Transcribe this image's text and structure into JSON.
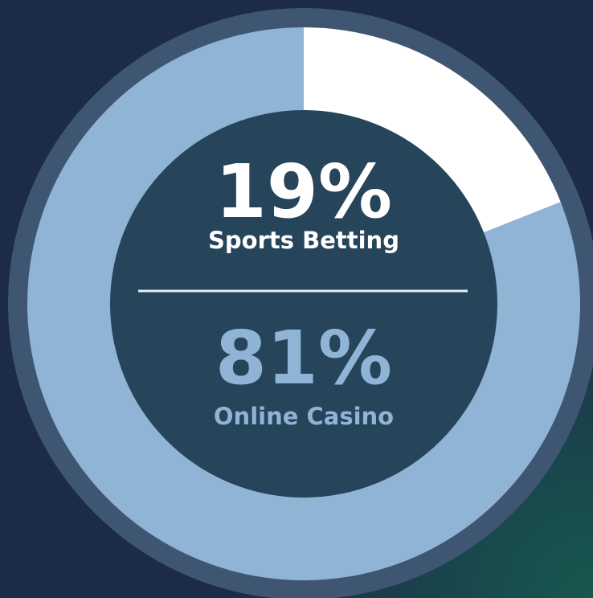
{
  "chart_data": {
    "type": "donut",
    "categories": [
      "Sports Betting",
      "Online Casino"
    ],
    "values": [
      19,
      81
    ],
    "value_labels": [
      "19%",
      "81%"
    ],
    "colors": [
      "#ffffff",
      "#8fb4d6"
    ]
  }
}
